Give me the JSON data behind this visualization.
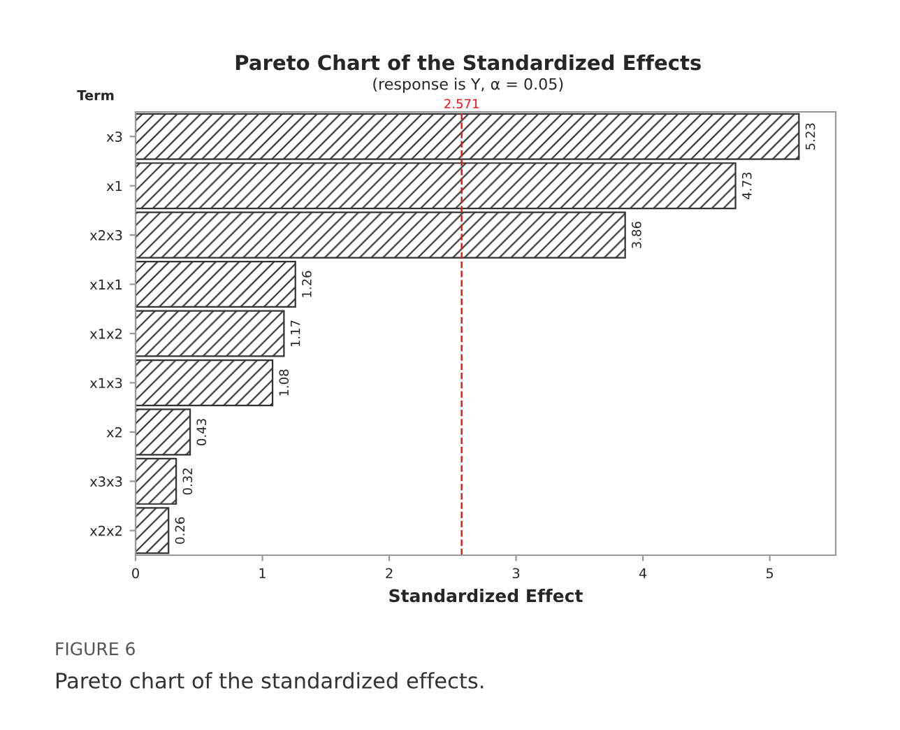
{
  "chart_data": {
    "type": "bar",
    "orientation": "horizontal",
    "title": "Pareto Chart of the Standardized Effects",
    "subtitle": "(response is Y, α = 0.05)",
    "ylabel": "Term",
    "xlabel": "Standardized Effect",
    "categories": [
      "x3",
      "x1",
      "x2x3",
      "x1x1",
      "x1x2",
      "x1x3",
      "x2",
      "x3x3",
      "x2x2"
    ],
    "values": [
      5.23,
      4.73,
      3.86,
      1.26,
      1.17,
      1.08,
      0.43,
      0.32,
      0.26
    ],
    "color": "#333333",
    "data_labels": true,
    "xlim": [
      0,
      5.52
    ],
    "xticks": [
      0,
      1,
      2,
      3,
      4,
      5
    ],
    "ref_lines": [
      {
        "axis": "x",
        "value": 2.571,
        "label": "2.571",
        "color": "#e31a1c",
        "line_style": "dashed"
      }
    ],
    "grid": false,
    "annotations": [
      "FIGURE 6",
      "Pareto chart of the standardized effects."
    ]
  }
}
